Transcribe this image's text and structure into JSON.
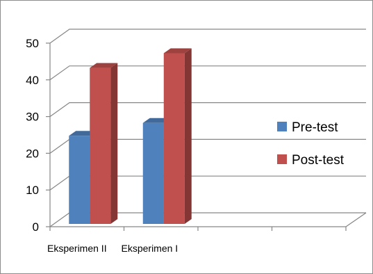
{
  "chart_data": {
    "type": "bar",
    "style": "3d-clustered-column",
    "categories": [
      "Eksperimen II",
      "Eksperimen I"
    ],
    "series": [
      {
        "name": "Pre-test",
        "values": [
          24,
          27.5
        ],
        "color": "#4F81BD"
      },
      {
        "name": "Post-test",
        "values": [
          42.5,
          46.5
        ],
        "color": "#C0504D"
      }
    ],
    "ylim": [
      0,
      50
    ],
    "yticks": [
      0,
      10,
      20,
      30,
      40,
      50
    ],
    "grid": true,
    "legend": "right"
  }
}
